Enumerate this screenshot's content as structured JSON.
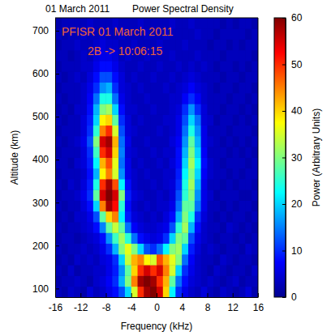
{
  "chart_data": {
    "type": "heatmap",
    "title": "Power Spectral Density",
    "subtitle": "01 March 2011",
    "x_label": "Frequency (kHz)",
    "y_label": "Altitude (km)",
    "annotations": [
      "PFISR 01 March 2011",
      "2B -> 10:06:15"
    ],
    "xlim": [
      -16,
      16
    ],
    "ylim": [
      80,
      730
    ],
    "xticks": [
      -16,
      -12,
      -8,
      -4,
      0,
      4,
      8,
      12,
      16
    ],
    "yticks": [
      100,
      200,
      300,
      400,
      500,
      600,
      700
    ],
    "colorbar_label": "Power (Arbitrary Units)",
    "colorbar_range": [
      0,
      60
    ],
    "colorbar_ticks": [
      0,
      10,
      20,
      30,
      40,
      50,
      60
    ],
    "x": [
      -15.5,
      -14.5,
      -13.5,
      -12.5,
      -11.5,
      -10.5,
      -9.5,
      -8.5,
      -7.5,
      -6.5,
      -5.5,
      -4.5,
      -3.5,
      -2.5,
      -1.5,
      -0.5,
      0.5,
      1.5,
      2.5,
      3.5,
      4.5,
      5.5,
      6.5,
      7.5,
      8.5,
      9.5,
      10.5,
      11.5,
      12.5,
      13.5,
      14.5,
      15.5
    ],
    "y": [
      92.5,
      117.5,
      142.5,
      167.5,
      192.5,
      217.5,
      242.5,
      267.5,
      292.5,
      317.5,
      342.5,
      367.5,
      392.5,
      417.5,
      442.5,
      467.5,
      492.5,
      517.5,
      542.5,
      567.5,
      592.5,
      617.5,
      642.5,
      667.5,
      692.5,
      717.5
    ],
    "z": [
      [
        3,
        2,
        4,
        3,
        2,
        5,
        3,
        4,
        6,
        8,
        12,
        20,
        35,
        50,
        58,
        60,
        55,
        40,
        22,
        10,
        6,
        4,
        3,
        5,
        3,
        2,
        4,
        3,
        2,
        3,
        5,
        2
      ],
      [
        2,
        3,
        3,
        4,
        3,
        2,
        4,
        5,
        7,
        10,
        18,
        30,
        45,
        58,
        60,
        58,
        50,
        42,
        28,
        14,
        8,
        5,
        4,
        3,
        4,
        3,
        2,
        3,
        4,
        2,
        3,
        3
      ],
      [
        3,
        2,
        4,
        2,
        3,
        3,
        4,
        4,
        6,
        9,
        16,
        28,
        40,
        50,
        55,
        50,
        55,
        45,
        35,
        20,
        10,
        6,
        4,
        3,
        2,
        4,
        3,
        2,
        3,
        3,
        2,
        4
      ],
      [
        2,
        3,
        2,
        4,
        3,
        4,
        3,
        5,
        6,
        10,
        20,
        34,
        42,
        45,
        38,
        35,
        48,
        42,
        36,
        30,
        14,
        7,
        4,
        3,
        3,
        2,
        4,
        3,
        2,
        3,
        3,
        2
      ],
      [
        3,
        2,
        3,
        3,
        4,
        3,
        4,
        6,
        10,
        18,
        30,
        36,
        30,
        20,
        12,
        10,
        14,
        22,
        30,
        32,
        20,
        9,
        5,
        3,
        4,
        3,
        2,
        3,
        3,
        2,
        4,
        3
      ],
      [
        2,
        3,
        3,
        2,
        3,
        4,
        5,
        8,
        16,
        26,
        32,
        25,
        14,
        8,
        6,
        5,
        6,
        10,
        20,
        30,
        28,
        12,
        6,
        4,
        3,
        2,
        3,
        3,
        2,
        3,
        2,
        3
      ],
      [
        3,
        2,
        3,
        3,
        4,
        5,
        8,
        15,
        28,
        34,
        28,
        14,
        7,
        5,
        4,
        4,
        5,
        6,
        12,
        25,
        32,
        18,
        8,
        4,
        3,
        3,
        2,
        4,
        3,
        2,
        3,
        2
      ],
      [
        2,
        3,
        2,
        4,
        4,
        6,
        12,
        28,
        40,
        45,
        22,
        9,
        5,
        4,
        3,
        4,
        3,
        5,
        8,
        18,
        30,
        24,
        10,
        5,
        3,
        2,
        3,
        2,
        3,
        3,
        2,
        3
      ],
      [
        3,
        2,
        3,
        3,
        5,
        8,
        20,
        45,
        58,
        52,
        25,
        8,
        4,
        3,
        4,
        3,
        4,
        4,
        6,
        14,
        28,
        28,
        14,
        6,
        3,
        3,
        2,
        3,
        2,
        3,
        3,
        2
      ],
      [
        2,
        3,
        3,
        4,
        6,
        10,
        28,
        55,
        60,
        55,
        30,
        9,
        5,
        4,
        3,
        3,
        4,
        3,
        5,
        12,
        25,
        30,
        16,
        6,
        4,
        2,
        3,
        3,
        3,
        2,
        2,
        3
      ],
      [
        3,
        2,
        4,
        3,
        5,
        9,
        24,
        50,
        58,
        48,
        22,
        8,
        4,
        3,
        3,
        4,
        3,
        4,
        5,
        10,
        24,
        32,
        18,
        6,
        3,
        3,
        2,
        3,
        2,
        3,
        3,
        2
      ],
      [
        2,
        3,
        3,
        3,
        4,
        8,
        18,
        38,
        45,
        35,
        16,
        6,
        4,
        3,
        4,
        3,
        3,
        4,
        4,
        9,
        22,
        30,
        20,
        7,
        4,
        3,
        3,
        2,
        3,
        2,
        3,
        3
      ],
      [
        3,
        3,
        2,
        4,
        5,
        9,
        22,
        42,
        48,
        36,
        14,
        6,
        3,
        4,
        3,
        3,
        4,
        3,
        5,
        8,
        20,
        32,
        22,
        8,
        4,
        3,
        2,
        3,
        3,
        3,
        2,
        3
      ],
      [
        2,
        3,
        3,
        3,
        5,
        10,
        26,
        50,
        55,
        40,
        15,
        5,
        4,
        3,
        3,
        4,
        3,
        4,
        4,
        8,
        18,
        30,
        20,
        7,
        3,
        3,
        3,
        2,
        3,
        2,
        3,
        2
      ],
      [
        3,
        2,
        3,
        4,
        6,
        12,
        30,
        55,
        58,
        42,
        14,
        6,
        3,
        3,
        4,
        3,
        3,
        3,
        5,
        7,
        16,
        28,
        18,
        6,
        4,
        3,
        2,
        3,
        2,
        3,
        2,
        3
      ],
      [
        2,
        3,
        3,
        3,
        5,
        10,
        25,
        45,
        50,
        35,
        12,
        5,
        4,
        3,
        3,
        3,
        4,
        3,
        4,
        6,
        14,
        24,
        16,
        6,
        3,
        3,
        3,
        2,
        3,
        3,
        3,
        2
      ],
      [
        3,
        2,
        3,
        3,
        5,
        9,
        20,
        38,
        40,
        28,
        10,
        5,
        3,
        4,
        3,
        3,
        3,
        4,
        4,
        6,
        12,
        20,
        14,
        5,
        4,
        2,
        3,
        3,
        2,
        3,
        2,
        3
      ],
      [
        2,
        3,
        2,
        4,
        4,
        8,
        18,
        30,
        32,
        20,
        8,
        4,
        4,
        3,
        3,
        4,
        3,
        3,
        4,
        5,
        10,
        16,
        10,
        5,
        3,
        3,
        2,
        3,
        3,
        2,
        3,
        2
      ],
      [
        3,
        2,
        3,
        3,
        4,
        7,
        14,
        24,
        24,
        14,
        6,
        4,
        3,
        3,
        4,
        3,
        3,
        3,
        4,
        4,
        7,
        10,
        7,
        4,
        3,
        3,
        3,
        2,
        3,
        3,
        2,
        3
      ],
      [
        2,
        3,
        3,
        3,
        4,
        6,
        10,
        16,
        18,
        10,
        5,
        4,
        3,
        4,
        3,
        3,
        3,
        4,
        3,
        4,
        5,
        7,
        5,
        4,
        3,
        2,
        3,
        3,
        2,
        3,
        3,
        2
      ],
      [
        3,
        2,
        3,
        4,
        3,
        5,
        8,
        12,
        12,
        8,
        5,
        3,
        4,
        3,
        3,
        4,
        3,
        3,
        4,
        3,
        4,
        5,
        4,
        3,
        3,
        3,
        2,
        3,
        3,
        2,
        3,
        3
      ],
      [
        2,
        3,
        3,
        3,
        4,
        4,
        6,
        8,
        8,
        6,
        4,
        3,
        3,
        4,
        3,
        3,
        4,
        3,
        3,
        4,
        3,
        4,
        3,
        4,
        3,
        2,
        3,
        3,
        2,
        3,
        2,
        3
      ],
      [
        3,
        3,
        2,
        3,
        4,
        3,
        5,
        6,
        6,
        5,
        3,
        4,
        3,
        3,
        4,
        3,
        3,
        3,
        4,
        3,
        3,
        3,
        4,
        3,
        3,
        3,
        2,
        3,
        3,
        3,
        3,
        2
      ],
      [
        2,
        3,
        3,
        4,
        3,
        3,
        4,
        5,
        4,
        4,
        3,
        3,
        4,
        3,
        3,
        3,
        4,
        3,
        3,
        3,
        4,
        3,
        3,
        3,
        2,
        3,
        3,
        2,
        3,
        2,
        3,
        3
      ],
      [
        3,
        2,
        3,
        3,
        4,
        3,
        3,
        4,
        3,
        3,
        4,
        3,
        3,
        3,
        4,
        3,
        3,
        4,
        3,
        3,
        3,
        3,
        4,
        3,
        3,
        2,
        3,
        3,
        3,
        3,
        2,
        3
      ],
      [
        2,
        3,
        3,
        3,
        3,
        4,
        3,
        3,
        3,
        4,
        3,
        3,
        3,
        4,
        3,
        3,
        3,
        3,
        4,
        3,
        3,
        4,
        3,
        3,
        3,
        3,
        2,
        3,
        2,
        3,
        3,
        2
      ]
    ]
  }
}
